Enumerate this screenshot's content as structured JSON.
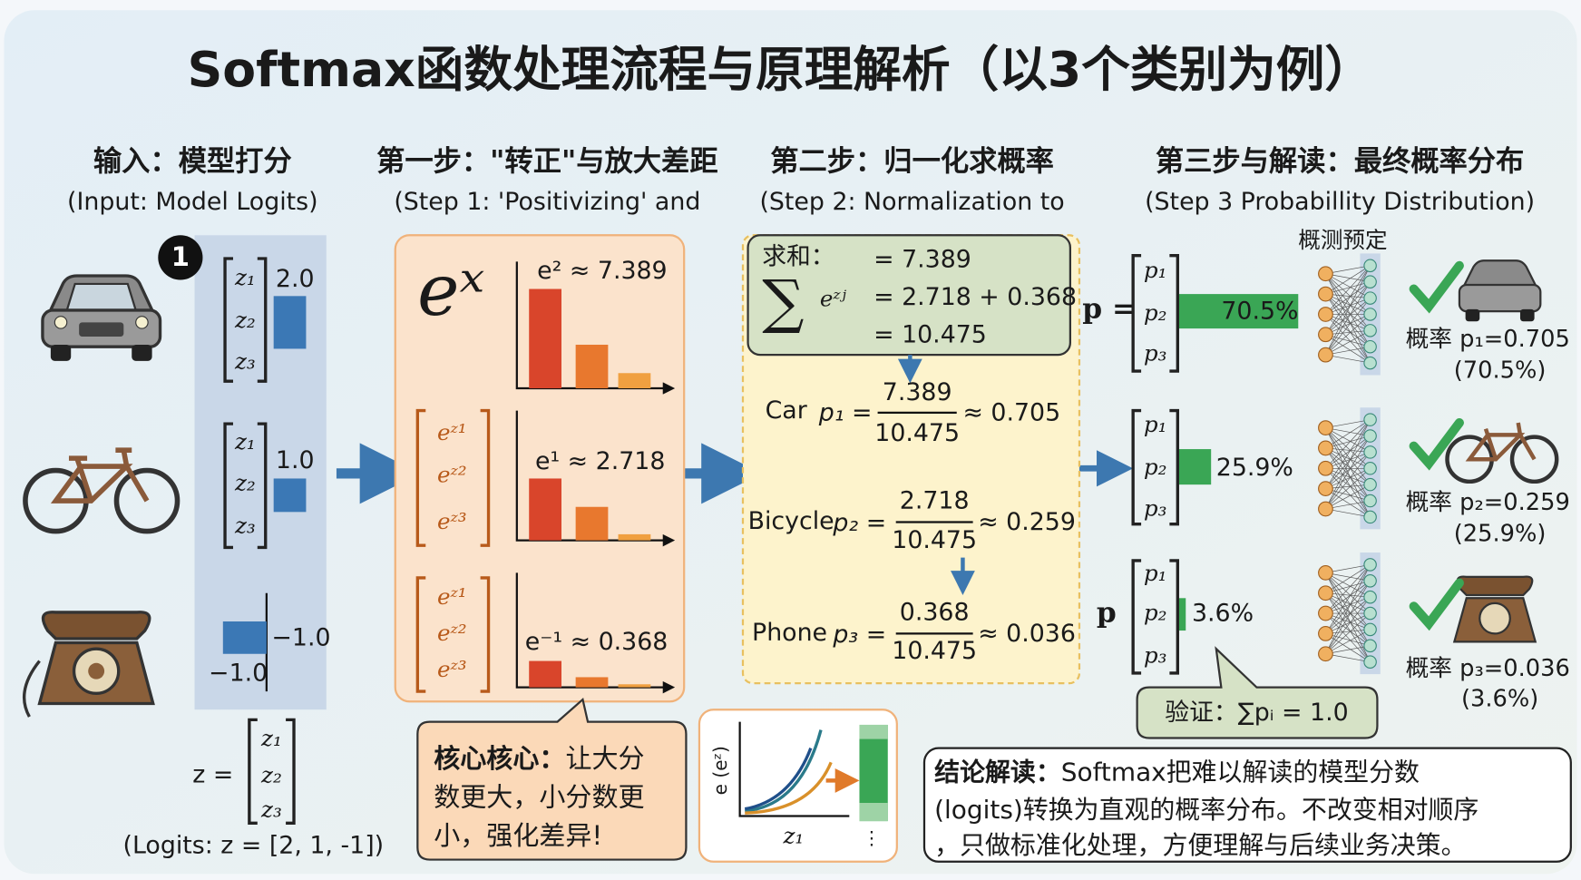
{
  "title": "Softmax函数处理流程与原理解析（以3个类别为例）",
  "columns": [
    {
      "heading": "输入：模型打分",
      "subheading": "(Input: Model Logits)"
    },
    {
      "heading": "第一步：\"转正\"与放大差距",
      "subheading": "(Step 1: 'Positivizing' and"
    },
    {
      "heading": "第二步：归一化求概率",
      "subheading": "(Step 2: Normalization to"
    },
    {
      "heading": "第三步与解读：最终概率分布",
      "subheading": "(Step 3 Probabillity Distribution)"
    }
  ],
  "input": {
    "badge": "1",
    "logits": [
      {
        "entries": [
          "z₁",
          "z₂",
          "z₃"
        ],
        "value": "2.0"
      },
      {
        "entries": [
          "z₁",
          "z₂",
          "z₃"
        ],
        "value": "1.0"
      },
      {
        "value": "−1.0",
        "axis_label": "−1.0"
      }
    ],
    "vector_label": "z =",
    "vector": [
      "z₁",
      "z₂",
      "z₃"
    ],
    "caption": "(Logits: z = [2, 1, -1])"
  },
  "step1": {
    "function": "eˣ",
    "groups": [
      {
        "annotation": "e² ≈ 7.389"
      },
      {
        "entries": [
          "eᶻ¹",
          "eᶻ²",
          "eᶻ³"
        ],
        "annotation": "e¹ ≈ 2.718"
      },
      {
        "entries": [
          "eᶻ¹",
          "eᶻ²",
          "eᶻ³"
        ],
        "annotation": "e⁻¹ ≈ 0.368"
      }
    ],
    "callout": {
      "prefix": "核心核心：",
      "lines": [
        "让大分",
        "数更大，小分数更",
        "小，强化差异!"
      ]
    },
    "mini_chart": {
      "y_label": "e (eᶻ)",
      "x_label": "z₁",
      "dots": "⋮"
    }
  },
  "step2": {
    "sum": {
      "label": "求和：",
      "symbol": "∑",
      "term": "eᶻʲ",
      "lines": [
        "= 7.389",
        "= 2.718 + 0.368",
        "= 10.475"
      ]
    },
    "rows": [
      {
        "class": "Car",
        "lhs": "p₁ =",
        "numerator": "7.389",
        "denominator": "10.475",
        "result": "≈ 0.705"
      },
      {
        "class": "Bicycle",
        "lhs": "p₂ =",
        "numerator": "2.718",
        "denominator": "10.475",
        "result": "≈ 0.259"
      },
      {
        "class": "Phone",
        "lhs": "p₃ =",
        "numerator": "0.368",
        "denominator": "10.475",
        "result": "≈ 0.036"
      }
    ]
  },
  "step3": {
    "network_label": "概测预定",
    "rows": [
      {
        "prefix": "p =",
        "entries": [
          "p₁",
          "p₂",
          "p₃"
        ],
        "bar_label": "70.5%",
        "probability": "概率 p₁=0.705",
        "percent": "(70.5%)"
      },
      {
        "entries": [
          "p₁",
          "p₂",
          "p₃"
        ],
        "bar_label": "25.9%",
        "probability": "概率 p₂=0.259",
        "percent": "(25.9%)"
      },
      {
        "prefix": "p",
        "entries": [
          "p₁",
          "p₂",
          "p₃"
        ],
        "bar_label": "3.6%",
        "probability": "概率 p₃=0.036",
        "percent": "(3.6%)"
      }
    ],
    "check": "验证：∑pᵢ = 1.0"
  },
  "conclusion": {
    "prefix": "结论解读：",
    "lines": [
      "Softmax把难以解读的模型分数",
      "(logits)转换为直观的概率分布。不改变相对顺序",
      "，只做标准化处理，方便理解与后续业务决策。"
    ]
  }
}
